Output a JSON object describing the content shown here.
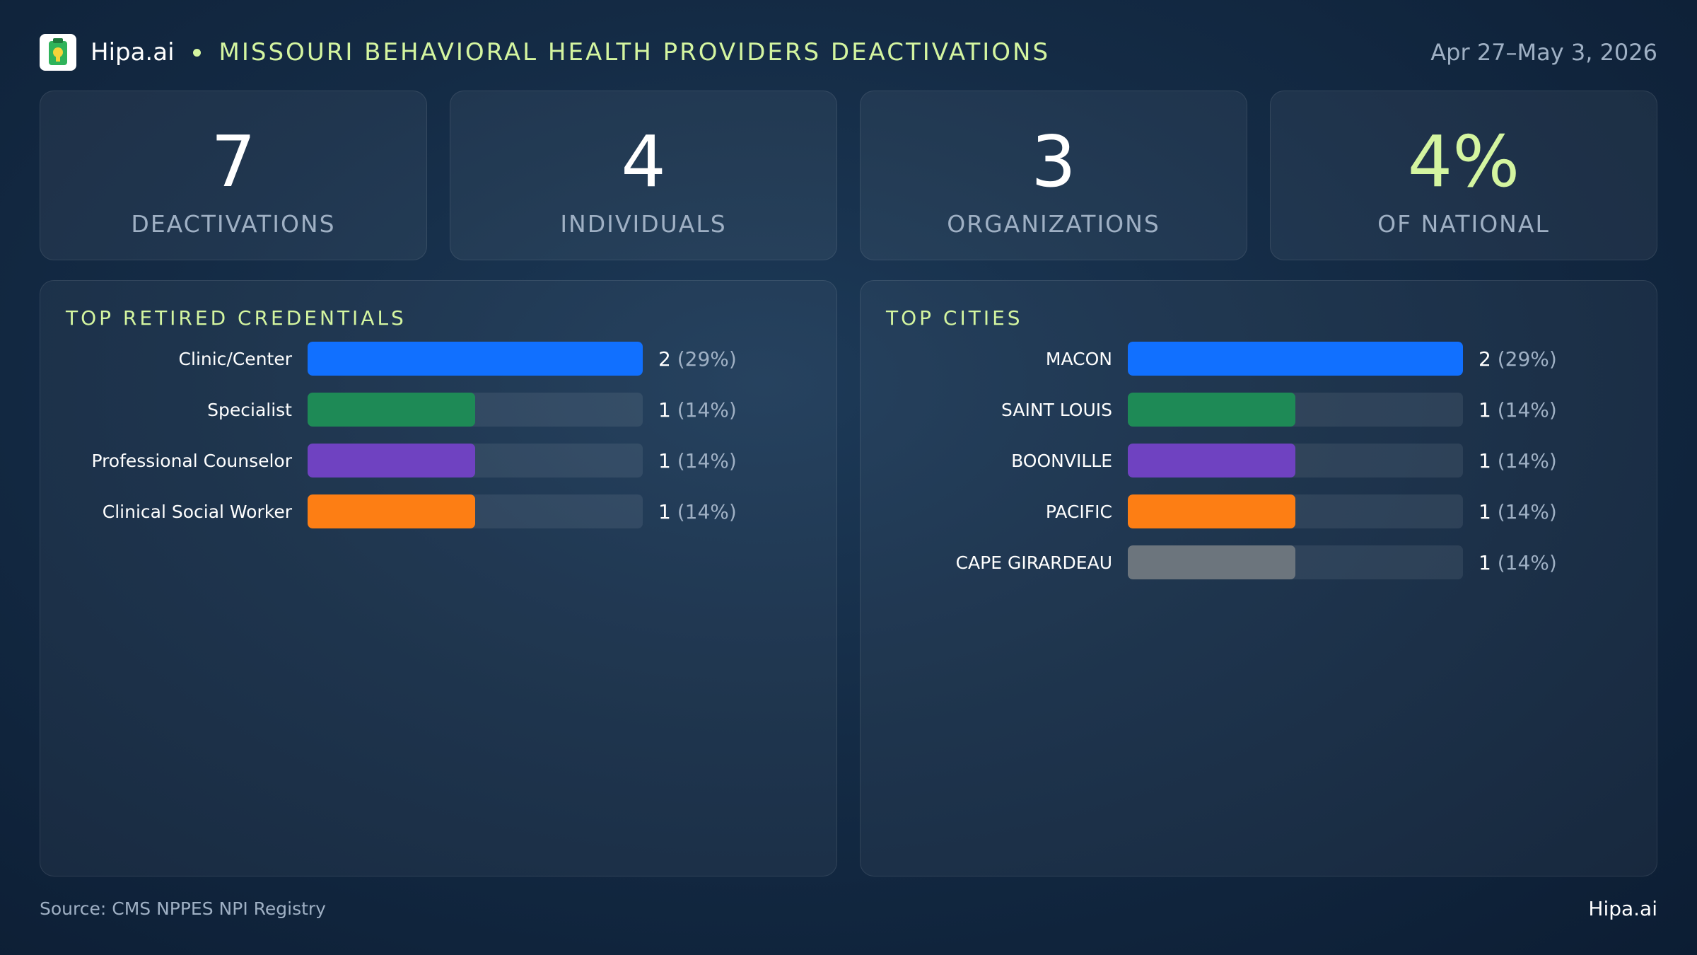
{
  "header": {
    "brand": "Hipa.ai",
    "title": "MISSOURI BEHAVIORAL HEALTH PROVIDERS DEACTIVATIONS",
    "date_range": "Apr 27–May 3, 2026"
  },
  "stats": [
    {
      "value": "7",
      "label": "DEACTIVATIONS"
    },
    {
      "value": "4",
      "label": "INDIVIDUALS"
    },
    {
      "value": "3",
      "label": "ORGANIZATIONS"
    },
    {
      "value": "4%",
      "label": "OF NATIONAL"
    }
  ],
  "colors": {
    "accent": "#d4f5a0",
    "blue": "#1170ff",
    "green": "#1e8a56",
    "purple": "#6f42c1",
    "orange": "#fd7e14",
    "gray": "#6c757d"
  },
  "chart_data": [
    {
      "type": "bar",
      "orientation": "horizontal",
      "title": "TOP RETIRED CREDENTIALS",
      "categories": [
        "Clinic/Center",
        "Specialist",
        "Professional Counselor",
        "Clinical Social Worker"
      ],
      "values": [
        2,
        1,
        1,
        1
      ],
      "percent_labels": [
        "(29%)",
        "(14%)",
        "(14%)",
        "(14%)"
      ],
      "colors": [
        "#1170ff",
        "#1e8a56",
        "#6f42c1",
        "#fd7e14"
      ],
      "xlim": [
        0,
        2
      ]
    },
    {
      "type": "bar",
      "orientation": "horizontal",
      "title": "TOP CITIES",
      "categories": [
        "MACON",
        "SAINT LOUIS",
        "BOONVILLE",
        "PACIFIC",
        "CAPE GIRARDEAU"
      ],
      "values": [
        2,
        1,
        1,
        1,
        1
      ],
      "percent_labels": [
        "(29%)",
        "(14%)",
        "(14%)",
        "(14%)",
        "(14%)"
      ],
      "colors": [
        "#1170ff",
        "#1e8a56",
        "#6f42c1",
        "#fd7e14",
        "#6c757d"
      ],
      "xlim": [
        0,
        2
      ]
    }
  ],
  "footer": {
    "source": "Source: CMS NPPES NPI Registry",
    "brand": "Hipa.ai"
  }
}
